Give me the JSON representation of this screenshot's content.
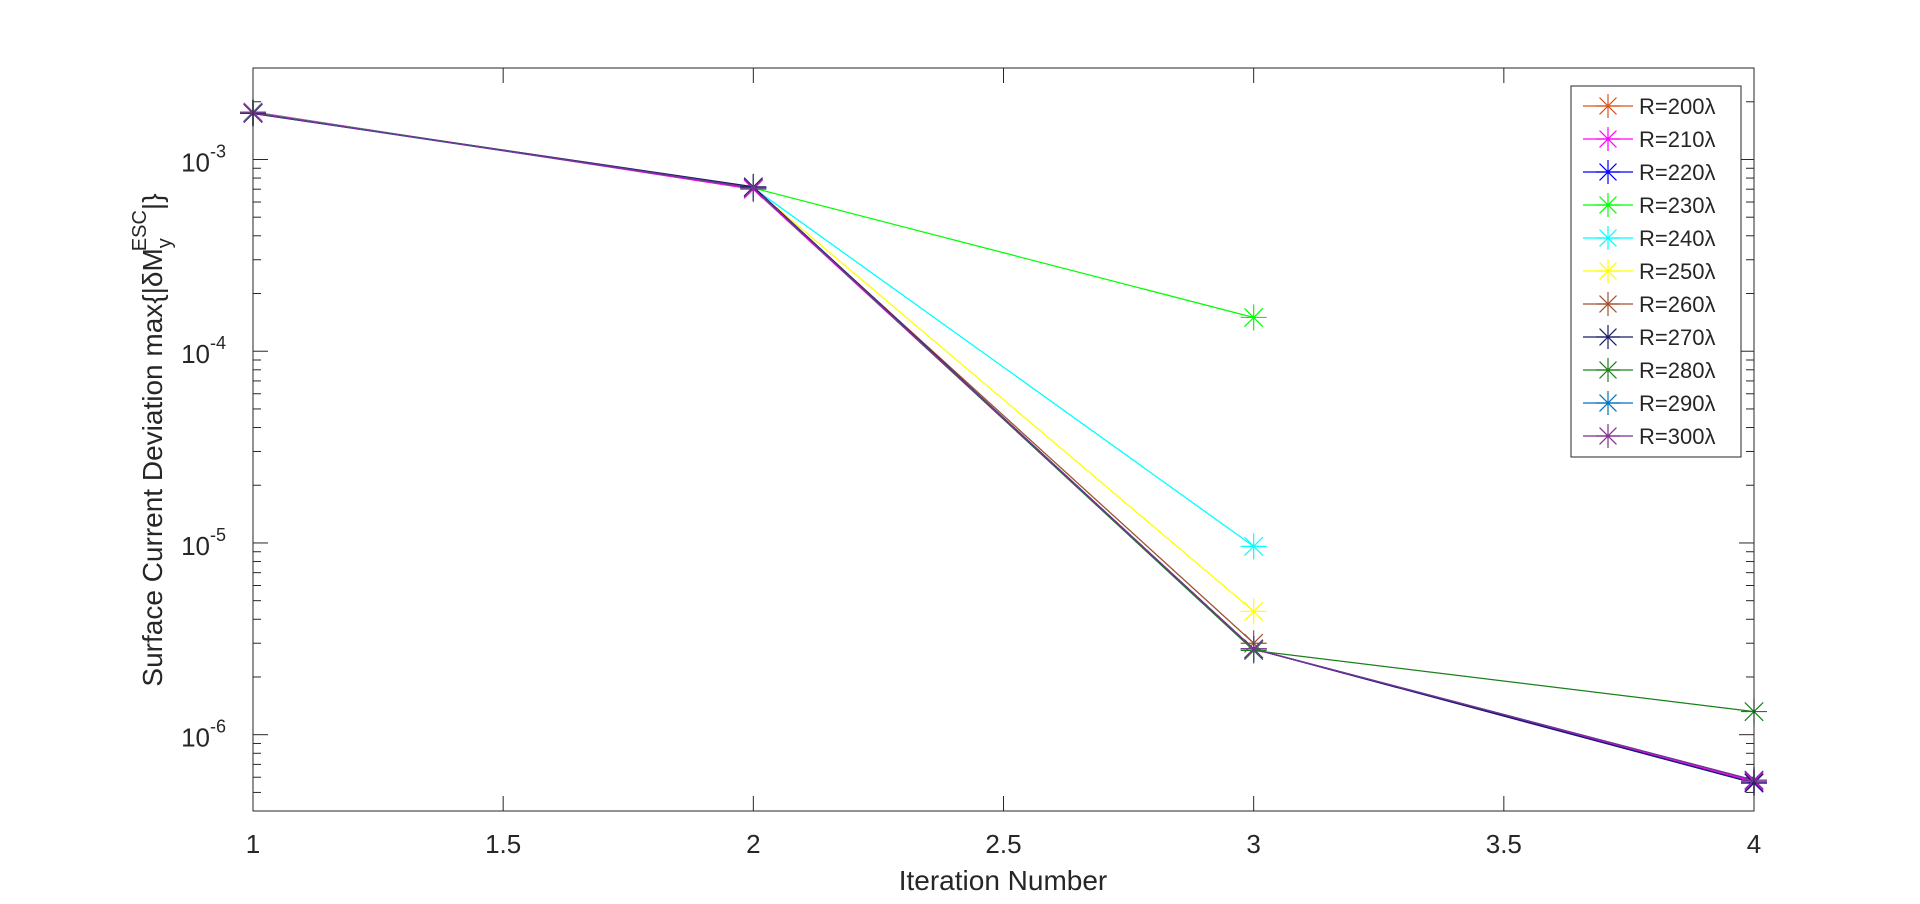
{
  "chart_data": {
    "type": "line",
    "title": "",
    "xlabel": "Iteration Number",
    "ylabel": {
      "prefix": "Surface Current Deviation max{|δM",
      "sup": "ESC",
      "sub": "y",
      "suffix": "|}"
    },
    "xlim": [
      1,
      4
    ],
    "ylim": [
      4e-07,
      0.003
    ],
    "yscale": "log",
    "grid": false,
    "legend_position": "top-right",
    "marker": "asterisk",
    "xticks": [
      1,
      1.5,
      2,
      2.5,
      3,
      3.5,
      4
    ],
    "xtick_labels": [
      "1",
      "1.5",
      "2",
      "2.5",
      "3",
      "3.5",
      "4"
    ],
    "yticks": [
      {
        "value": 1e-06,
        "base": "10",
        "exp": "-6"
      },
      {
        "value": 1e-05,
        "base": "10",
        "exp": "-5"
      },
      {
        "value": 0.0001,
        "base": "10",
        "exp": "-4"
      },
      {
        "value": 0.001,
        "base": "10",
        "exp": "-3"
      }
    ],
    "series": [
      {
        "name": "R=200λ",
        "color": "#D95319",
        "x": [
          1,
          2,
          3,
          4
        ],
        "y": [
          0.00175,
          0.00071,
          2.8e-06,
          5.7e-07
        ]
      },
      {
        "name": "R=210λ",
        "color": "#FF00FF",
        "x": [
          1,
          2,
          3,
          4
        ],
        "y": [
          0.00177,
          0.0007,
          2.8e-06,
          5.7e-07
        ]
      },
      {
        "name": "R=220λ",
        "color": "#0000FF",
        "x": [
          1,
          2,
          3,
          4
        ],
        "y": [
          0.00174,
          0.00071,
          2.8e-06,
          5.6e-07
        ]
      },
      {
        "name": "R=230λ",
        "color": "#00FF00",
        "x": [
          1,
          2,
          3
        ],
        "y": [
          0.00176,
          0.00071,
          0.00015
        ]
      },
      {
        "name": "R=240λ",
        "color": "#00FFFF",
        "x": [
          1,
          2,
          3
        ],
        "y": [
          0.00175,
          0.00071,
          9.6e-06
        ]
      },
      {
        "name": "R=250λ",
        "color": "#FFFF00",
        "x": [
          1,
          2,
          3
        ],
        "y": [
          0.00175,
          0.00071,
          4.4e-06
        ]
      },
      {
        "name": "R=260λ",
        "color": "#A0522D",
        "x": [
          1,
          2,
          3
        ],
        "y": [
          0.00175,
          0.00071,
          3e-06
        ]
      },
      {
        "name": "R=270λ",
        "color": "#1A1A66",
        "x": [
          1,
          2,
          3,
          4
        ],
        "y": [
          0.00174,
          0.00072,
          2.8e-06,
          5.6e-07
        ]
      },
      {
        "name": "R=280λ",
        "color": "#1A801A",
        "x": [
          1,
          2,
          3,
          4
        ],
        "y": [
          0.00175,
          0.00071,
          2.75e-06,
          1.32e-06
        ]
      },
      {
        "name": "R=290λ",
        "color": "#0072BD",
        "x": [
          1,
          2,
          3,
          4
        ],
        "y": [
          0.00175,
          0.00071,
          2.8e-06,
          5.8e-07
        ]
      },
      {
        "name": "R=300λ",
        "color": "#7E2F8E",
        "x": [
          1,
          2,
          3,
          4
        ],
        "y": [
          0.00175,
          0.00071,
          2.8e-06,
          5.8e-07
        ]
      }
    ]
  }
}
